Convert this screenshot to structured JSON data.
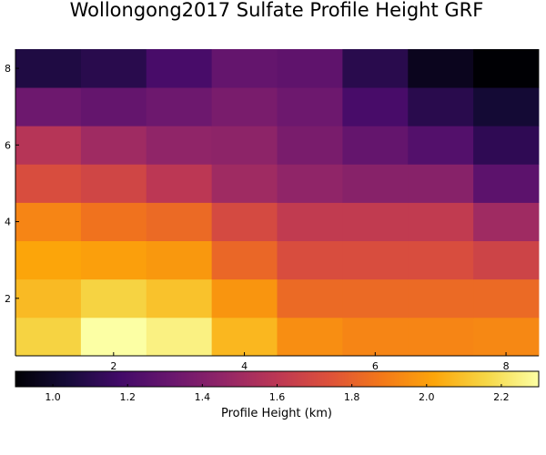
{
  "chart_data": {
    "type": "heatmap",
    "title": "Wollongong2017 Sulfate Profile Height GRF",
    "x_ticks": [
      2,
      4,
      6,
      8
    ],
    "y_ticks": [
      2,
      4,
      6,
      8
    ],
    "x_range": [
      0.5,
      8.5
    ],
    "y_range": [
      0.5,
      8.5
    ],
    "colorbar": {
      "label": "Profile Height (km)",
      "range": [
        0.9,
        2.3
      ],
      "ticks": [
        1.0,
        1.2,
        1.4,
        1.6,
        1.8,
        2.0,
        2.2
      ],
      "tick_labels": [
        "1.0",
        "1.2",
        "1.4",
        "1.6",
        "1.8",
        "2.0",
        "2.2"
      ],
      "colormap": "inferno"
    },
    "grid_size": [
      8,
      8
    ],
    "z_rows_bottom_to_top": [
      [
        2.15,
        2.3,
        2.25,
        2.07,
        1.95,
        1.92,
        1.92,
        1.93
      ],
      [
        2.08,
        2.15,
        2.1,
        1.97,
        1.83,
        1.83,
        1.83,
        1.83
      ],
      [
        2.02,
        2.0,
        1.98,
        1.82,
        1.72,
        1.72,
        1.72,
        1.67
      ],
      [
        1.92,
        1.86,
        1.83,
        1.7,
        1.62,
        1.62,
        1.62,
        1.5
      ],
      [
        1.72,
        1.68,
        1.6,
        1.5,
        1.45,
        1.42,
        1.42,
        1.27
      ],
      [
        1.58,
        1.5,
        1.45,
        1.44,
        1.37,
        1.3,
        1.24,
        1.12
      ],
      [
        1.33,
        1.3,
        1.33,
        1.37,
        1.33,
        1.2,
        1.1,
        1.03
      ],
      [
        1.07,
        1.1,
        1.2,
        1.3,
        1.28,
        1.1,
        0.97,
        0.9
      ]
    ]
  }
}
